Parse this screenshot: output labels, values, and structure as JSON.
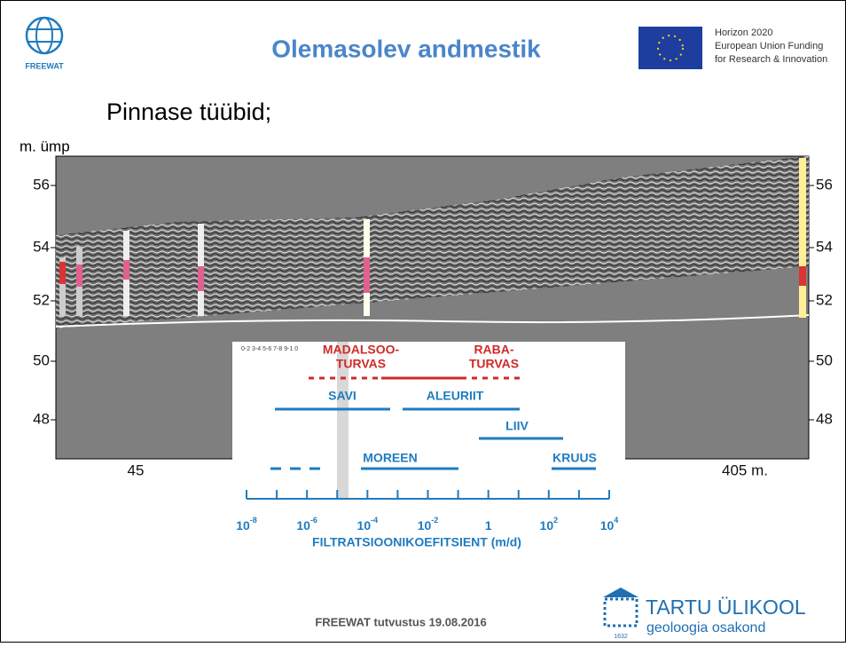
{
  "header": {
    "logo_text": "FREEWAT",
    "title": "Olemasolev andmestik",
    "eu_lines": [
      "Horizon 2020",
      "European Union Funding",
      "for Research & Innovation"
    ]
  },
  "subtitle": "Pinnase tüübid;",
  "figure": {
    "y_axis_label": "m. ümp",
    "y_ticks_left": [
      "56",
      "54",
      "52",
      "50",
      "48"
    ],
    "y_ticks_right": [
      "56",
      "54",
      "52",
      "50",
      "48"
    ],
    "x_ticks": [
      "45",
      "405 m."
    ],
    "inset": {
      "scale_text": "0-2 3-4 5-6 7-8 9-1 0",
      "labels": [
        "MADALSOO-",
        "TURVAS",
        "RABA-",
        "TURVAS",
        "SAVI",
        "ALEURIIT",
        "LIIV",
        "MOREEN",
        "KRUUS"
      ],
      "axis_ticks": [
        {
          "base": "10",
          "exp": "-8"
        },
        {
          "base": "10",
          "exp": "-6"
        },
        {
          "base": "10",
          "exp": "-4"
        },
        {
          "base": "10",
          "exp": "-2"
        },
        {
          "base": "1",
          "exp": ""
        },
        {
          "base": "10",
          "exp": "2"
        },
        {
          "base": "10",
          "exp": "4"
        }
      ],
      "axis_title": "FILTRATSIOONIKOEFITSIENT (m/d)"
    }
  },
  "footer": {
    "text": "FREEWAT tutvustus 19.08.2016",
    "university": "TARTU ÜLIKOOL",
    "department": "geoloogia osakond",
    "year": "1632"
  }
}
